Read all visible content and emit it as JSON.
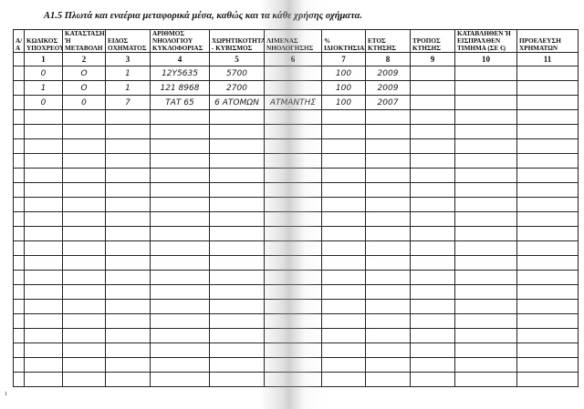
{
  "title": "A1.5 Πλωτά και εναέρια μεταφορικά μέσα, καθώς και τα κάθε χρήσης οχήματα.",
  "headers": [
    "Α/Α",
    "ΚΩΔΙΚΟΣ ΥΠΟΧΡΕΟΥ",
    "ΚΑΤΑΣΤΑΣΗ Ή ΜΕΤΑΒΟΛΗ",
    "ΕΙΔΟΣ ΟΧΗΜΑΤΟΣ",
    "ΑΡΙΘΜΟΣ ΝΗΟΛΟΓΙΟΥ ΚΥΚΛΟΦΟΡΙΑΣ",
    "ΧΩΡΗΤΙΚΟΤΗΤΑ - ΚΥΒΙΣΜΟΣ",
    "ΛΙΜΕΝΑΣ ΝΗΟΛΟΓΗΣΗΣ",
    "% ΙΔΙΟΚΤΗΣΙΑΣ",
    "ΕΤΟΣ ΚΤΗΣΗΣ",
    "ΤΡΟΠΟΣ ΚΤΗΣΗΣ",
    "ΚΑΤΑΒΛΗΘΕΝ Ή ΕΙΣΠΡΑΧΘΕΝ ΤΙΜΗΜΑ (ΣΕ €)",
    "ΠΡΟΕΛΕΥΣΗ ΧΡΗΜΑΤΩΝ"
  ],
  "column_numbers": [
    "",
    "1",
    "2",
    "3",
    "4",
    "5",
    "6",
    "7",
    "8",
    "9",
    "10",
    "11"
  ],
  "rows": [
    [
      "",
      "0",
      "O",
      "1",
      "12Υ5635",
      "5700",
      "",
      "100",
      "2009",
      "",
      "",
      ""
    ],
    [
      "",
      "1",
      "O",
      "1",
      "121 8968",
      "2700",
      "",
      "100",
      "2009",
      "",
      "",
      ""
    ],
    [
      "",
      "0",
      "0",
      "7",
      "ΤΑΤ 65",
      "6 ΑΤΟΜΩΝ",
      "ΑΤΜΑΝΤΗΣ",
      "100",
      "2007",
      "",
      "",
      ""
    ]
  ],
  "empty_row_count": 19,
  "page_mark": "1"
}
